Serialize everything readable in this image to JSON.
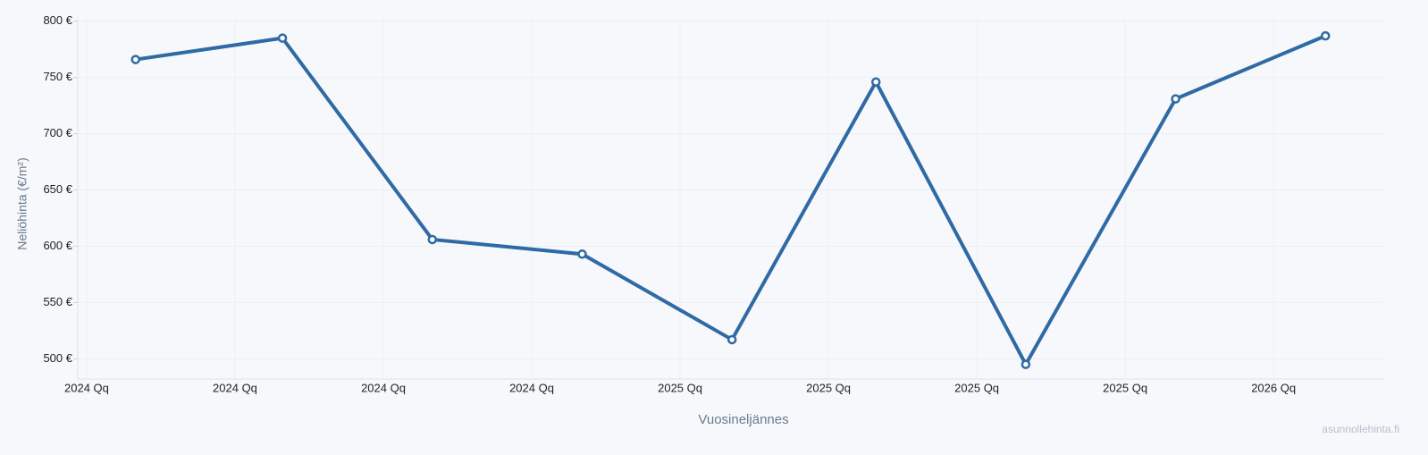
{
  "chart_data": {
    "type": "line",
    "y_label": "Neliöhinta (€/m²)",
    "x_label": "Vuosineljännes",
    "watermark": "asunnollehinta.fi",
    "x": [
      0.33,
      1.32,
      2.33,
      3.34,
      4.35,
      5.32,
      6.33,
      7.34,
      8.35
    ],
    "series": [
      {
        "name": "Neliöhinta",
        "color": "#2f6aa5",
        "values": [
          766,
          785,
          606,
          593,
          517,
          746,
          495,
          731,
          787
        ]
      }
    ],
    "xlim": [
      -0.06,
      8.74
    ],
    "xticks": [
      {
        "value": 0,
        "label": "2024 Qq"
      },
      {
        "value": 1,
        "label": "2024 Qq"
      },
      {
        "value": 2,
        "label": "2024 Qq"
      },
      {
        "value": 3,
        "label": "2024 Qq"
      },
      {
        "value": 4,
        "label": "2025 Qq"
      },
      {
        "value": 5,
        "label": "2025 Qq"
      },
      {
        "value": 6,
        "label": "2025 Qq"
      },
      {
        "value": 7,
        "label": "2025 Qq"
      },
      {
        "value": 8,
        "label": "2026 Qq"
      }
    ],
    "ylim": [
      482,
      803
    ],
    "yticks": [
      {
        "value": 500,
        "label": "500 €"
      },
      {
        "value": 550,
        "label": "550 €"
      },
      {
        "value": 600,
        "label": "600 €"
      },
      {
        "value": 650,
        "label": "650 €"
      },
      {
        "value": 700,
        "label": "700 €"
      },
      {
        "value": 750,
        "label": "750 €"
      },
      {
        "value": 800,
        "label": "800 €"
      }
    ],
    "grid": true
  }
}
